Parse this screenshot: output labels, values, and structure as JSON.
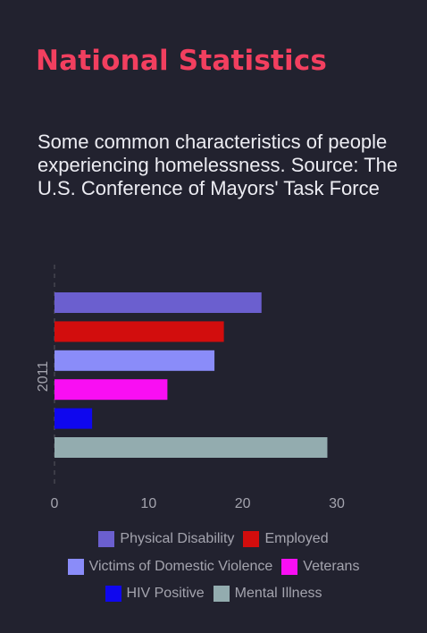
{
  "header": {
    "title": "National Statistics"
  },
  "description": "Some common characteristics of people experiencing homelessness. Source: The U.S. Conference of Mayors' Task Force",
  "chart_data": {
    "type": "bar",
    "orientation": "horizontal",
    "categories": [
      "2011"
    ],
    "series": [
      {
        "name": "Physical Disability",
        "values": [
          22
        ],
        "color": "#6b5fcf"
      },
      {
        "name": "Employed",
        "values": [
          18
        ],
        "color": "#d20d0d"
      },
      {
        "name": "Victims of Domestic Violence",
        "values": [
          17
        ],
        "color": "#8a8cf9"
      },
      {
        "name": "Veterans",
        "values": [
          12
        ],
        "color": "#f90ef3"
      },
      {
        "name": "HIV Positive",
        "values": [
          4
        ],
        "color": "#0f07ee"
      },
      {
        "name": "Mental Illness",
        "values": [
          29
        ],
        "color": "#93acaf"
      }
    ],
    "xlim": [
      0,
      30
    ],
    "xticks": [
      "0",
      "10",
      "20",
      "30"
    ],
    "grid": false,
    "legend_position": "bottom"
  }
}
